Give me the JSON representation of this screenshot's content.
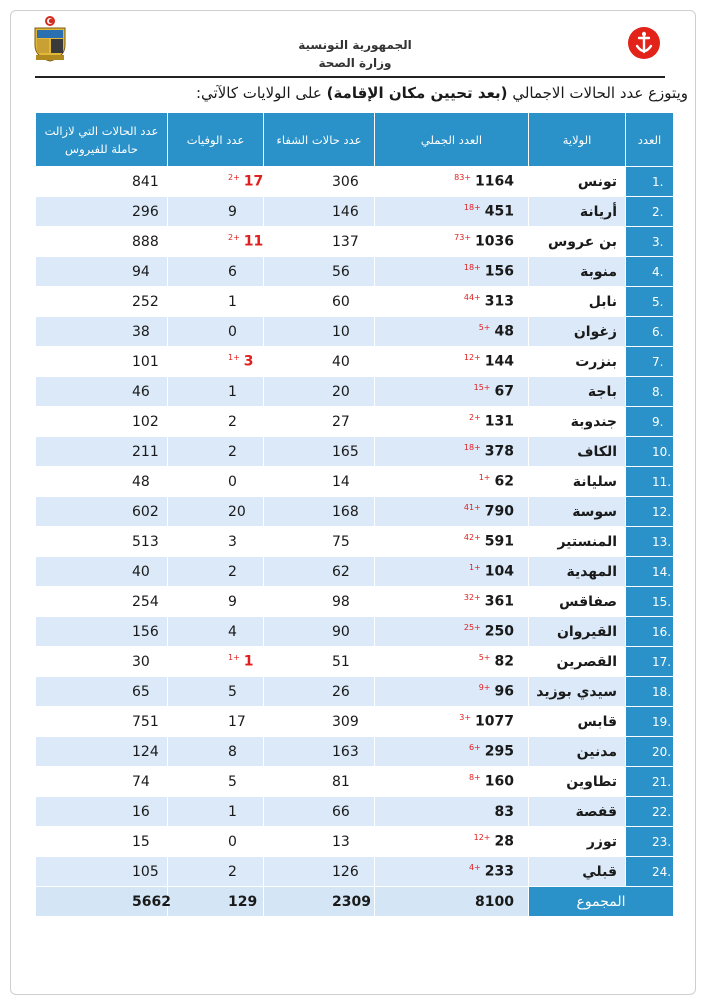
{
  "header": {
    "republic": "الجمهورية التونسية",
    "ministry": "وزارة الصحة",
    "intro_prefix": "ويتوزع عدد الحالات الاجمالي ",
    "intro_bold": "(بعد تحيين مكان الإقامة)",
    "intro_suffix": " على الولايات كالآتي:"
  },
  "columns": {
    "active": "عدد الحالات التي لازالت حاملة للفيروس",
    "deaths": "عدد الوفيات",
    "cured": "عدد حالات الشفاء",
    "total": "العدد الجملي",
    "governorate": "الولاية",
    "index": "العدد"
  },
  "rows": [
    {
      "idx": "1.",
      "name": "تونس",
      "total": "1164",
      "inc": "83+",
      "cured": "306",
      "deaths": "17",
      "death_inc": "2+",
      "active": "841"
    },
    {
      "idx": "2.",
      "name": "أريانة",
      "total": "451",
      "inc": "18+",
      "cured": "146",
      "deaths": "9",
      "death_inc": "",
      "active": "296"
    },
    {
      "idx": "3.",
      "name": "بن عروس",
      "total": "1036",
      "inc": "73+",
      "cured": "137",
      "deaths": "11",
      "death_inc": "2+",
      "active": "888"
    },
    {
      "idx": "4.",
      "name": "منوبة",
      "total": "156",
      "inc": "18+",
      "cured": "56",
      "deaths": "6",
      "death_inc": "",
      "active": "94"
    },
    {
      "idx": "5.",
      "name": "نابل",
      "total": "313",
      "inc": "44+",
      "cured": "60",
      "deaths": "1",
      "death_inc": "",
      "active": "252"
    },
    {
      "idx": "6.",
      "name": "زغوان",
      "total": "48",
      "inc": "5+",
      "cured": "10",
      "deaths": "0",
      "death_inc": "",
      "active": "38"
    },
    {
      "idx": "7.",
      "name": "بنزرت",
      "total": "144",
      "inc": "12+",
      "cured": "40",
      "deaths": "3",
      "death_inc": "1+",
      "active": "101"
    },
    {
      "idx": "8.",
      "name": "باجة",
      "total": "67",
      "inc": "15+",
      "cured": "20",
      "deaths": "1",
      "death_inc": "",
      "active": "46"
    },
    {
      "idx": "9.",
      "name": "جندوبة",
      "total": "131",
      "inc": "2+",
      "cured": "27",
      "deaths": "2",
      "death_inc": "",
      "active": "102"
    },
    {
      "idx": "10.",
      "name": "الكاف",
      "total": "378",
      "inc": "18+",
      "cured": "165",
      "deaths": "2",
      "death_inc": "",
      "active": "211"
    },
    {
      "idx": "11.",
      "name": "سليانة",
      "total": "62",
      "inc": "1+",
      "cured": "14",
      "deaths": "0",
      "death_inc": "",
      "active": "48"
    },
    {
      "idx": "12.",
      "name": "سوسة",
      "total": "790",
      "inc": "41+",
      "cured": "168",
      "deaths": "20",
      "death_inc": "",
      "active": "602"
    },
    {
      "idx": "13.",
      "name": "المنستير",
      "total": "591",
      "inc": "42+",
      "cured": "75",
      "deaths": "3",
      "death_inc": "",
      "active": "513"
    },
    {
      "idx": "14.",
      "name": "المهدية",
      "total": "104",
      "inc": "1+",
      "cured": "62",
      "deaths": "2",
      "death_inc": "",
      "active": "40"
    },
    {
      "idx": "15.",
      "name": "صفاقس",
      "total": "361",
      "inc": "32+",
      "cured": "98",
      "deaths": "9",
      "death_inc": "",
      "active": "254"
    },
    {
      "idx": "16.",
      "name": "القيروان",
      "total": "250",
      "inc": "25+",
      "cured": "90",
      "deaths": "4",
      "death_inc": "",
      "active": "156"
    },
    {
      "idx": "17.",
      "name": "القصرين",
      "total": "82",
      "inc": "5+",
      "cured": "51",
      "deaths": "1",
      "death_inc": "1+",
      "active": "30"
    },
    {
      "idx": "18.",
      "name": "سيدي بوزيد",
      "total": "96",
      "inc": "9+",
      "cured": "26",
      "deaths": "5",
      "death_inc": "",
      "active": "65"
    },
    {
      "idx": "19.",
      "name": "قابس",
      "total": "1077",
      "inc": "3+",
      "cured": "309",
      "deaths": "17",
      "death_inc": "",
      "active": "751"
    },
    {
      "idx": "20.",
      "name": "مدنين",
      "total": "295",
      "inc": "6+",
      "cured": "163",
      "deaths": "8",
      "death_inc": "",
      "active": "124"
    },
    {
      "idx": "21.",
      "name": "تطاوين",
      "total": "160",
      "inc": "8+",
      "cured": "81",
      "deaths": "5",
      "death_inc": "",
      "active": "74"
    },
    {
      "idx": "22.",
      "name": "قفصة",
      "total": "83",
      "inc": "",
      "cured": "66",
      "deaths": "1",
      "death_inc": "",
      "active": "16"
    },
    {
      "idx": "23.",
      "name": "توزر",
      "total": "28",
      "inc": "12+",
      "cured": "13",
      "deaths": "0",
      "death_inc": "",
      "active": "15"
    },
    {
      "idx": "24.",
      "name": "قبلي",
      "total": "233",
      "inc": "4+",
      "cured": "126",
      "deaths": "2",
      "death_inc": "",
      "active": "105"
    }
  ],
  "totals": {
    "label": "المجموع",
    "total": "8100",
    "cured": "2309",
    "deaths": "129",
    "active": "5662"
  },
  "colors": {
    "header_blue": "#2a92c8",
    "row_stripe": "#dbe9f8",
    "increment_red": "#e02020"
  },
  "icons": {
    "left": "tunisia-coat-of-arms-icon",
    "right": "ministry-of-health-logo-icon"
  }
}
